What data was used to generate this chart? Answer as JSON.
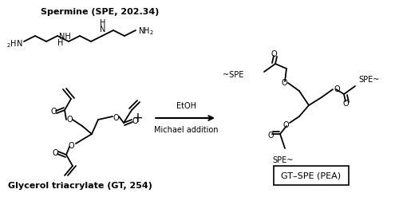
{
  "bg_color": "#ffffff",
  "title_spermine": "Spermine (SPE, 202.34)",
  "title_gt": "Glycerol triacrylate (GT, 254)",
  "label_etoh": "EtOH",
  "label_michael": "Michael addition",
  "label_gt_spe": "GT–SPE (PEA)",
  "figsize": [
    5.0,
    2.47
  ],
  "dpi": 100
}
